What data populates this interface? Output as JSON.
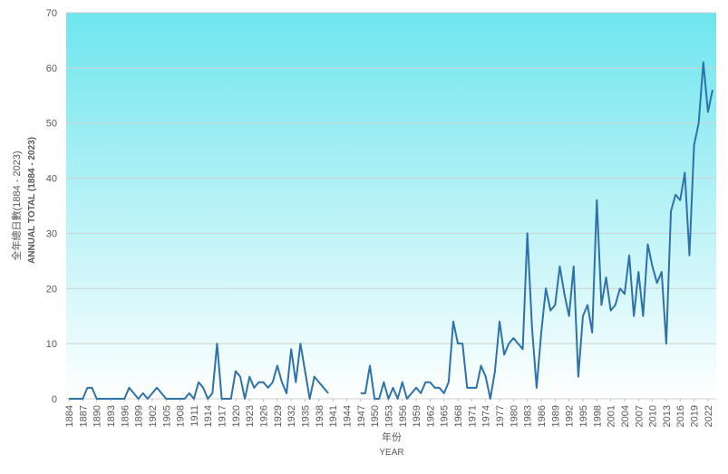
{
  "chart_data": {
    "type": "line",
    "ylabel_zh": "全年總日數(1884 - 2023)",
    "ylabel_en": "ANNUAL TOTAL (1884 - 2023)",
    "xlabel_zh": "年份",
    "xlabel_en": "YEAR",
    "x": [
      1884,
      1885,
      1886,
      1887,
      1888,
      1889,
      1890,
      1891,
      1892,
      1893,
      1894,
      1895,
      1896,
      1897,
      1898,
      1899,
      1900,
      1901,
      1902,
      1903,
      1904,
      1905,
      1906,
      1907,
      1908,
      1909,
      1910,
      1911,
      1912,
      1913,
      1914,
      1915,
      1916,
      1917,
      1918,
      1919,
      1920,
      1921,
      1922,
      1923,
      1924,
      1925,
      1926,
      1927,
      1928,
      1929,
      1930,
      1931,
      1932,
      1933,
      1934,
      1935,
      1936,
      1937,
      1938,
      1939,
      1940,
      1941,
      1942,
      1943,
      1944,
      1945,
      1946,
      1947,
      1948,
      1949,
      1950,
      1951,
      1952,
      1953,
      1954,
      1955,
      1956,
      1957,
      1958,
      1959,
      1960,
      1961,
      1962,
      1963,
      1964,
      1965,
      1966,
      1967,
      1968,
      1969,
      1970,
      1971,
      1972,
      1973,
      1974,
      1975,
      1976,
      1977,
      1978,
      1979,
      1980,
      1981,
      1982,
      1983,
      1984,
      1985,
      1986,
      1987,
      1988,
      1989,
      1990,
      1991,
      1992,
      1993,
      1994,
      1995,
      1996,
      1997,
      1998,
      1999,
      2000,
      2001,
      2002,
      2003,
      2004,
      2005,
      2006,
      2007,
      2008,
      2009,
      2010,
      2011,
      2012,
      2013,
      2014,
      2015,
      2016,
      2017,
      2018,
      2019,
      2020,
      2021,
      2022,
      2023
    ],
    "series": [
      {
        "name": "ANNUAL TOTAL",
        "color": "#2e72aa",
        "values": [
          0,
          0,
          0,
          0,
          2,
          2,
          0,
          0,
          0,
          0,
          0,
          0,
          0,
          2,
          1,
          0,
          1,
          0,
          1,
          2,
          1,
          0,
          0,
          0,
          0,
          0,
          1,
          0,
          3,
          2,
          0,
          1,
          10,
          0,
          0,
          0,
          5,
          4,
          0,
          4,
          2,
          3,
          3,
          2,
          3,
          6,
          3,
          1,
          9,
          3,
          10,
          5,
          0,
          4,
          3,
          2,
          1,
          null,
          null,
          null,
          null,
          null,
          null,
          1,
          1,
          6,
          0,
          0,
          3,
          0,
          2,
          0,
          3,
          0,
          1,
          2,
          1,
          3,
          3,
          2,
          2,
          1,
          3,
          14,
          10,
          10,
          2,
          2,
          2,
          6,
          4,
          0,
          5,
          14,
          8,
          10,
          11,
          10,
          9,
          30,
          13,
          2,
          12,
          20,
          16,
          17,
          24,
          19,
          15,
          24,
          4,
          15,
          17,
          12,
          36,
          17,
          22,
          16,
          17,
          20,
          19,
          26,
          15,
          23,
          15,
          28,
          24,
          21,
          23,
          10,
          34,
          37,
          36,
          41,
          26,
          46,
          50,
          61,
          52,
          56
        ]
      }
    ],
    "xlim": [
      1884,
      2023
    ],
    "xticks": [
      1884,
      1887,
      1890,
      1893,
      1896,
      1899,
      1902,
      1905,
      1908,
      1911,
      1914,
      1917,
      1920,
      1923,
      1926,
      1929,
      1932,
      1935,
      1938,
      1941,
      1944,
      1947,
      1950,
      1953,
      1956,
      1959,
      1962,
      1965,
      1968,
      1971,
      1974,
      1977,
      1980,
      1983,
      1986,
      1989,
      1992,
      1995,
      1998,
      2001,
      2004,
      2007,
      2010,
      2013,
      2016,
      2019,
      2022
    ],
    "ylim": [
      0,
      70
    ],
    "yticks": [
      0,
      10,
      20,
      30,
      40,
      50,
      60,
      70
    ],
    "grid": true
  }
}
